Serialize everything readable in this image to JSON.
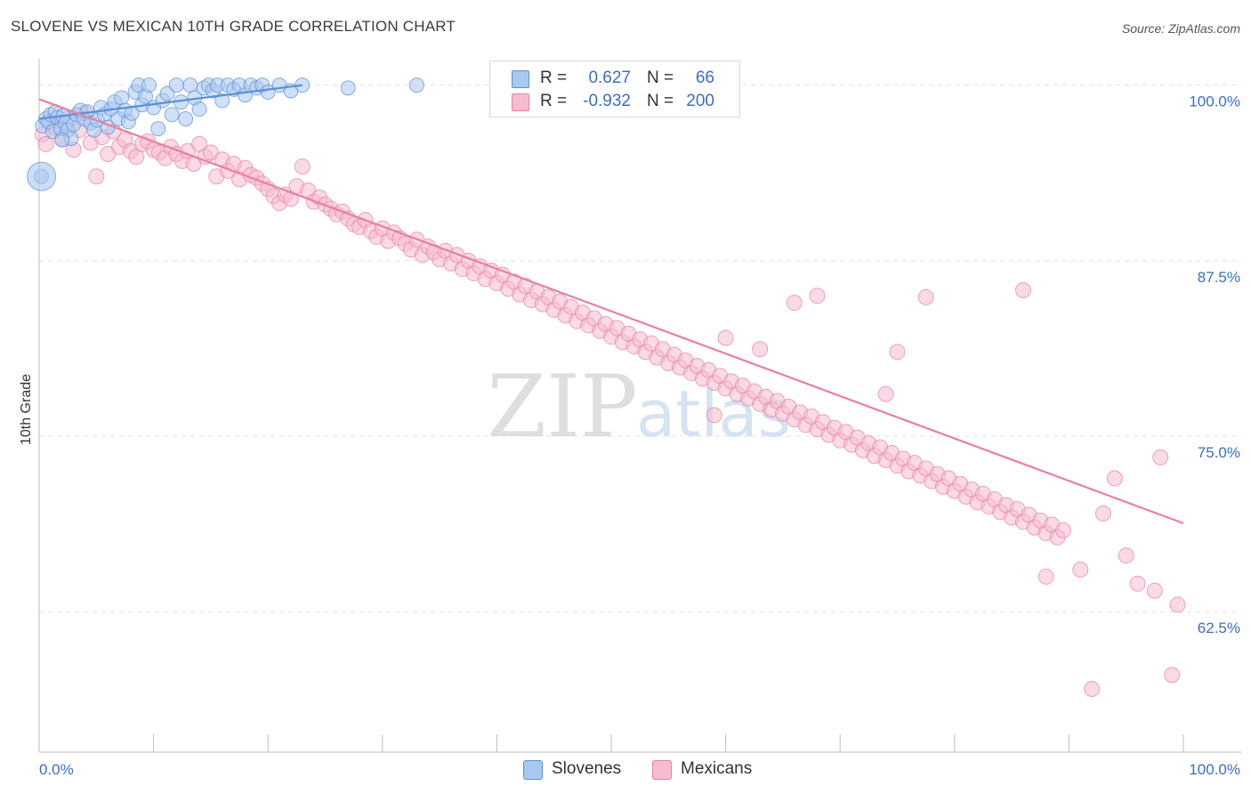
{
  "title": "SLOVENE VS MEXICAN 10TH GRADE CORRELATION CHART",
  "source": "Source: ZipAtlas.com",
  "watermark": {
    "zip": "ZIP",
    "atlas": "atlas"
  },
  "stats": [
    {
      "r_label": "R =",
      "r_value": "0.627",
      "n_label": "N =",
      "n_value": "66",
      "color": "#a9c8f0",
      "border": "#5b8fd6"
    },
    {
      "r_label": "R =",
      "r_value": "-0.932",
      "n_label": "N =",
      "n_value": "200",
      "color": "#f6bccd",
      "border": "#e87fa1"
    }
  ],
  "legend": [
    {
      "label": "Slovenes",
      "color": "#a9c8f0",
      "border": "#5b8fd6"
    },
    {
      "label": "Mexicans",
      "color": "#f6bccd",
      "border": "#e87fa1"
    }
  ],
  "chart_data": {
    "type": "scatter",
    "title": "SLOVENE VS MEXICAN 10TH GRADE CORRELATION CHART",
    "xlabel": "",
    "ylabel": "10th Grade",
    "xlim": [
      0,
      100
    ],
    "ylim": [
      52.5,
      101.5
    ],
    "x_tick_labels": [
      "0.0%",
      "100.0%"
    ],
    "y_ticks": [
      62.5,
      75.0,
      87.5,
      100.0
    ],
    "y_tick_labels": [
      "62.5%",
      "75.0%",
      "87.5%",
      "100.0%"
    ],
    "grid": true,
    "legend_position": "bottom",
    "series": [
      {
        "name": "Slovenes",
        "color": "#5b8fd6",
        "fill": "#a9c8f0",
        "trend": {
          "x": [
            0,
            23
          ],
          "y": [
            97.6,
            100.0
          ]
        },
        "points": [
          [
            0.3,
            97.1
          ],
          [
            0.6,
            97.6
          ],
          [
            0.8,
            97.4
          ],
          [
            1.0,
            97.9
          ],
          [
            1.2,
            96.7
          ],
          [
            1.4,
            98.1
          ],
          [
            1.6,
            97.7
          ],
          [
            1.9,
            96.9
          ],
          [
            2.1,
            97.8
          ],
          [
            2.3,
            97.3
          ],
          [
            2.5,
            96.8
          ],
          [
            2.8,
            96.2
          ],
          [
            3.0,
            97.2
          ],
          [
            3.3,
            97.9
          ],
          [
            3.6,
            98.2
          ],
          [
            3.9,
            97.6
          ],
          [
            4.2,
            98.1
          ],
          [
            4.5,
            97.3
          ],
          [
            4.8,
            96.8
          ],
          [
            5.1,
            97.5
          ],
          [
            5.4,
            98.4
          ],
          [
            5.7,
            97.9
          ],
          [
            6.0,
            97.0
          ],
          [
            6.3,
            98.3
          ],
          [
            6.6,
            98.8
          ],
          [
            6.9,
            97.6
          ],
          [
            7.2,
            99.1
          ],
          [
            7.5,
            98.2
          ],
          [
            7.8,
            97.4
          ],
          [
            8.1,
            98.0
          ],
          [
            8.4,
            99.5
          ],
          [
            8.7,
            100.0
          ],
          [
            9.0,
            98.6
          ],
          [
            9.3,
            99.2
          ],
          [
            9.6,
            100.0
          ],
          [
            10.0,
            98.4
          ],
          [
            10.4,
            96.9
          ],
          [
            10.8,
            98.9
          ],
          [
            11.2,
            99.4
          ],
          [
            11.6,
            97.9
          ],
          [
            12.0,
            100.0
          ],
          [
            12.4,
            98.8
          ],
          [
            12.8,
            97.6
          ],
          [
            13.2,
            100.0
          ],
          [
            13.6,
            99.1
          ],
          [
            14.0,
            98.3
          ],
          [
            14.4,
            99.8
          ],
          [
            14.8,
            100.0
          ],
          [
            15.2,
            99.6
          ],
          [
            15.6,
            100.0
          ],
          [
            16.0,
            98.9
          ],
          [
            16.5,
            100.0
          ],
          [
            17.0,
            99.7
          ],
          [
            17.5,
            100.0
          ],
          [
            18.0,
            99.3
          ],
          [
            18.5,
            100.0
          ],
          [
            19.0,
            99.8
          ],
          [
            19.5,
            100.0
          ],
          [
            20.0,
            99.5
          ],
          [
            21.0,
            100.0
          ],
          [
            22.0,
            99.6
          ],
          [
            23.0,
            100.0
          ],
          [
            27.0,
            99.8
          ],
          [
            33.0,
            100.0
          ],
          [
            0.2,
            93.5
          ],
          [
            2.0,
            96.1
          ]
        ]
      },
      {
        "name": "Mexicans",
        "color": "#e87fa1",
        "fill": "#f6bccd",
        "trend": {
          "x": [
            0,
            100
          ],
          "y": [
            99.0,
            68.8
          ]
        },
        "points": [
          [
            0.3,
            96.5
          ],
          [
            0.6,
            95.8
          ],
          [
            1.0,
            97.3
          ],
          [
            1.5,
            96.9
          ],
          [
            2.0,
            96.2
          ],
          [
            2.5,
            97.6
          ],
          [
            3.0,
            95.4
          ],
          [
            3.5,
            96.8
          ],
          [
            4.0,
            98.0
          ],
          [
            4.5,
            95.9
          ],
          [
            5.0,
            93.5
          ],
          [
            5.5,
            96.3
          ],
          [
            6.0,
            95.1
          ],
          [
            6.5,
            96.7
          ],
          [
            7.0,
            95.6
          ],
          [
            7.5,
            96.1
          ],
          [
            8.0,
            95.3
          ],
          [
            8.5,
            94.9
          ],
          [
            9.0,
            95.8
          ],
          [
            9.5,
            96.0
          ],
          [
            10.0,
            95.4
          ],
          [
            10.5,
            95.2
          ],
          [
            11.0,
            94.8
          ],
          [
            11.5,
            95.6
          ],
          [
            12.0,
            95.1
          ],
          [
            12.5,
            94.6
          ],
          [
            13.0,
            95.3
          ],
          [
            13.5,
            94.4
          ],
          [
            14.0,
            95.8
          ],
          [
            14.5,
            94.9
          ],
          [
            15.0,
            95.2
          ],
          [
            15.5,
            93.5
          ],
          [
            16.0,
            94.7
          ],
          [
            16.5,
            93.9
          ],
          [
            17.0,
            94.4
          ],
          [
            17.5,
            93.3
          ],
          [
            18.0,
            94.1
          ],
          [
            18.5,
            93.6
          ],
          [
            19.0,
            93.4
          ],
          [
            19.5,
            93.0
          ],
          [
            20.0,
            92.6
          ],
          [
            20.5,
            92.1
          ],
          [
            21.0,
            91.6
          ],
          [
            21.5,
            92.2
          ],
          [
            22.0,
            91.9
          ],
          [
            22.5,
            92.8
          ],
          [
            23.0,
            94.2
          ],
          [
            23.5,
            92.5
          ],
          [
            24.0,
            91.7
          ],
          [
            24.5,
            92.0
          ],
          [
            25.0,
            91.5
          ],
          [
            25.5,
            91.2
          ],
          [
            26.0,
            90.8
          ],
          [
            26.5,
            91.0
          ],
          [
            27.0,
            90.5
          ],
          [
            27.5,
            90.1
          ],
          [
            28.0,
            89.9
          ],
          [
            28.5,
            90.4
          ],
          [
            29.0,
            89.6
          ],
          [
            29.5,
            89.2
          ],
          [
            30.0,
            89.8
          ],
          [
            30.5,
            88.9
          ],
          [
            31.0,
            89.5
          ],
          [
            31.5,
            89.1
          ],
          [
            32.0,
            88.7
          ],
          [
            32.5,
            88.3
          ],
          [
            33.0,
            89.0
          ],
          [
            33.5,
            87.9
          ],
          [
            34.0,
            88.5
          ],
          [
            34.5,
            88.1
          ],
          [
            35.0,
            87.6
          ],
          [
            35.5,
            88.2
          ],
          [
            36.0,
            87.3
          ],
          [
            36.5,
            87.9
          ],
          [
            37.0,
            86.9
          ],
          [
            37.5,
            87.5
          ],
          [
            38.0,
            86.6
          ],
          [
            38.5,
            87.1
          ],
          [
            39.0,
            86.2
          ],
          [
            39.5,
            86.8
          ],
          [
            40.0,
            85.9
          ],
          [
            40.5,
            86.5
          ],
          [
            41.0,
            85.5
          ],
          [
            41.5,
            86.0
          ],
          [
            42.0,
            85.1
          ],
          [
            42.5,
            85.7
          ],
          [
            43.0,
            84.7
          ],
          [
            43.5,
            85.3
          ],
          [
            44.0,
            84.4
          ],
          [
            44.5,
            84.9
          ],
          [
            45.0,
            84.0
          ],
          [
            45.5,
            84.6
          ],
          [
            46.0,
            83.6
          ],
          [
            46.5,
            84.2
          ],
          [
            47.0,
            83.2
          ],
          [
            47.5,
            83.8
          ],
          [
            48.0,
            82.9
          ],
          [
            48.5,
            83.4
          ],
          [
            49.0,
            82.5
          ],
          [
            49.5,
            83.0
          ],
          [
            50.0,
            82.1
          ],
          [
            50.5,
            82.7
          ],
          [
            51.0,
            81.7
          ],
          [
            51.5,
            82.3
          ],
          [
            52.0,
            81.4
          ],
          [
            52.5,
            81.9
          ],
          [
            53.0,
            81.0
          ],
          [
            53.5,
            81.6
          ],
          [
            54.0,
            80.6
          ],
          [
            54.5,
            81.2
          ],
          [
            55.0,
            80.2
          ],
          [
            55.5,
            80.8
          ],
          [
            56.0,
            79.9
          ],
          [
            56.5,
            80.4
          ],
          [
            57.0,
            79.5
          ],
          [
            57.5,
            80.0
          ],
          [
            58.0,
            79.1
          ],
          [
            58.5,
            79.7
          ],
          [
            59.0,
            78.8
          ],
          [
            59.5,
            79.3
          ],
          [
            60.0,
            78.4
          ],
          [
            60.5,
            78.9
          ],
          [
            61.0,
            78.0
          ],
          [
            61.5,
            78.6
          ],
          [
            62.0,
            77.7
          ],
          [
            62.5,
            78.2
          ],
          [
            63.0,
            77.3
          ],
          [
            63.5,
            77.8
          ],
          [
            64.0,
            76.9
          ],
          [
            64.5,
            77.5
          ],
          [
            65.0,
            76.6
          ],
          [
            65.5,
            77.1
          ],
          [
            66.0,
            76.2
          ],
          [
            66.5,
            76.7
          ],
          [
            67.0,
            75.8
          ],
          [
            67.5,
            76.4
          ],
          [
            68.0,
            75.5
          ],
          [
            68.5,
            76.0
          ],
          [
            69.0,
            75.1
          ],
          [
            69.5,
            75.6
          ],
          [
            70.0,
            74.7
          ],
          [
            70.5,
            75.3
          ],
          [
            71.0,
            74.4
          ],
          [
            71.5,
            74.9
          ],
          [
            72.0,
            74.0
          ],
          [
            72.5,
            74.5
          ],
          [
            73.0,
            73.6
          ],
          [
            73.5,
            74.2
          ],
          [
            74.0,
            73.3
          ],
          [
            74.5,
            73.8
          ],
          [
            75.0,
            72.9
          ],
          [
            75.5,
            73.4
          ],
          [
            76.0,
            72.5
          ],
          [
            76.5,
            73.1
          ],
          [
            77.0,
            72.2
          ],
          [
            77.5,
            72.7
          ],
          [
            78.0,
            71.8
          ],
          [
            78.5,
            72.3
          ],
          [
            79.0,
            71.4
          ],
          [
            79.5,
            72.0
          ],
          [
            80.0,
            71.1
          ],
          [
            80.5,
            71.6
          ],
          [
            81.0,
            70.7
          ],
          [
            81.5,
            71.2
          ],
          [
            82.0,
            70.3
          ],
          [
            82.5,
            70.9
          ],
          [
            83.0,
            70.0
          ],
          [
            83.5,
            70.5
          ],
          [
            84.0,
            69.6
          ],
          [
            84.5,
            70.1
          ],
          [
            85.0,
            69.2
          ],
          [
            85.5,
            69.8
          ],
          [
            86.0,
            68.9
          ],
          [
            86.5,
            69.4
          ],
          [
            87.0,
            68.5
          ],
          [
            87.5,
            69.0
          ],
          [
            88.0,
            68.1
          ],
          [
            88.5,
            68.7
          ],
          [
            89.0,
            67.8
          ],
          [
            89.5,
            68.3
          ],
          [
            66.0,
            84.5
          ],
          [
            68.0,
            85.0
          ],
          [
            77.5,
            84.9
          ],
          [
            86.0,
            85.4
          ],
          [
            60.0,
            82.0
          ],
          [
            63.0,
            81.2
          ],
          [
            75.0,
            81.0
          ],
          [
            92.0,
            57.0
          ],
          [
            99.0,
            58.0
          ],
          [
            95.0,
            66.5
          ],
          [
            96.0,
            64.5
          ],
          [
            97.5,
            64.0
          ],
          [
            99.5,
            63.0
          ],
          [
            91.0,
            65.5
          ],
          [
            93.0,
            69.5
          ],
          [
            88.0,
            65.0
          ],
          [
            98.0,
            73.5
          ],
          [
            94.0,
            72.0
          ],
          [
            59.0,
            76.5
          ],
          [
            74.0,
            78.0
          ]
        ]
      }
    ]
  }
}
